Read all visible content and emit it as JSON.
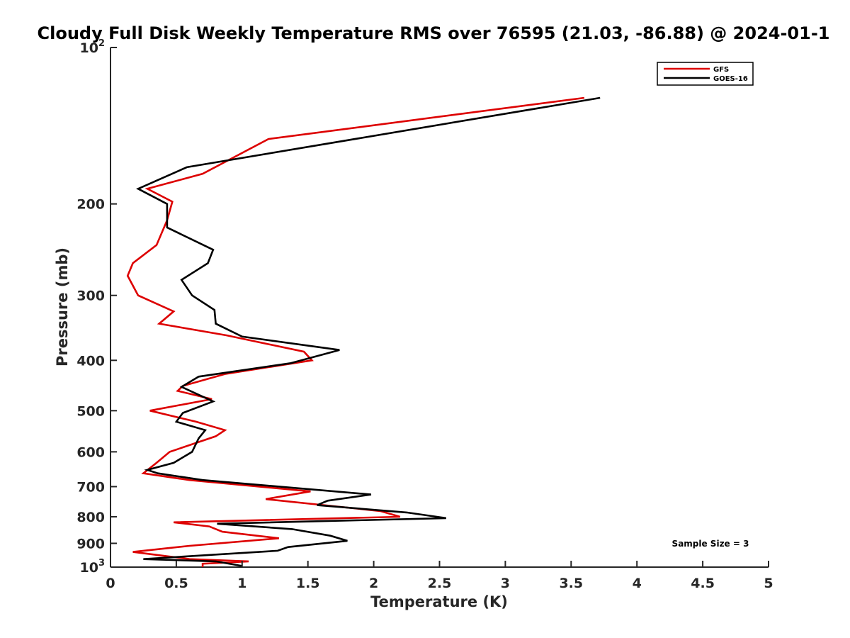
{
  "chart_data": {
    "type": "line",
    "title": "Cloudy Full Disk Weekly Temperature RMS over 76595 (21.03, -86.88) @ 2024-01-1",
    "xlabel": "Temperature (K)",
    "ylabel": "Pressure (mb)",
    "xlim": [
      0,
      5
    ],
    "ylim": [
      100,
      1000
    ],
    "y_scale": "log",
    "y_reversed": true,
    "grid": false,
    "legend_position": "top-right",
    "x_ticks": [
      "0",
      "0.5",
      "1",
      "1.5",
      "2",
      "2.5",
      "3",
      "3.5",
      "4",
      "4.5",
      "5"
    ],
    "y_ticks": [
      {
        "value": 100,
        "base": "10",
        "exp": "2"
      },
      {
        "value": 200,
        "label": "200"
      },
      {
        "value": 300,
        "label": "300"
      },
      {
        "value": 400,
        "label": "400"
      },
      {
        "value": 500,
        "label": "500"
      },
      {
        "value": 600,
        "label": "600"
      },
      {
        "value": 700,
        "label": "700"
      },
      {
        "value": 800,
        "label": "800"
      },
      {
        "value": 900,
        "label": "900"
      },
      {
        "value": 1000,
        "base": "10",
        "exp": "3"
      }
    ],
    "annotation": "Sample Size = 3",
    "series": [
      {
        "name": "GFS",
        "color": "#dd0000",
        "points": [
          [
            3.6,
            125
          ],
          [
            1.2,
            150
          ],
          [
            0.7,
            175
          ],
          [
            0.28,
            187
          ],
          [
            0.47,
            198
          ],
          [
            0.43,
            215
          ],
          [
            0.35,
            240
          ],
          [
            0.17,
            260
          ],
          [
            0.13,
            275
          ],
          [
            0.21,
            300
          ],
          [
            0.48,
            322
          ],
          [
            0.37,
            340
          ],
          [
            0.88,
            358
          ],
          [
            1.47,
            385
          ],
          [
            1.53,
            400
          ],
          [
            0.87,
            425
          ],
          [
            0.55,
            448
          ],
          [
            0.51,
            458
          ],
          [
            0.77,
            475
          ],
          [
            0.3,
            500
          ],
          [
            0.65,
            525
          ],
          [
            0.87,
            545
          ],
          [
            0.8,
            560
          ],
          [
            0.45,
            600
          ],
          [
            0.35,
            630
          ],
          [
            0.25,
            660
          ],
          [
            0.6,
            680
          ],
          [
            1.52,
            715
          ],
          [
            1.18,
            740
          ],
          [
            2.05,
            780
          ],
          [
            2.2,
            800
          ],
          [
            0.48,
            820
          ],
          [
            0.75,
            835
          ],
          [
            0.85,
            855
          ],
          [
            1.28,
            880
          ],
          [
            0.6,
            910
          ],
          [
            0.17,
            935
          ],
          [
            0.6,
            965
          ],
          [
            1.05,
            975
          ],
          [
            0.7,
            985
          ],
          [
            0.7,
            1000
          ]
        ]
      },
      {
        "name": "GOES-16",
        "color": "#000000",
        "points": [
          [
            3.72,
            125
          ],
          [
            0.58,
            170
          ],
          [
            0.21,
            187
          ],
          [
            0.43,
            200
          ],
          [
            0.43,
            222
          ],
          [
            0.78,
            245
          ],
          [
            0.74,
            260
          ],
          [
            0.54,
            280
          ],
          [
            0.62,
            300
          ],
          [
            0.79,
            320
          ],
          [
            0.8,
            340
          ],
          [
            1.0,
            360
          ],
          [
            1.74,
            382
          ],
          [
            1.37,
            405
          ],
          [
            0.67,
            430
          ],
          [
            0.54,
            450
          ],
          [
            0.78,
            480
          ],
          [
            0.55,
            505
          ],
          [
            0.5,
            525
          ],
          [
            0.72,
            545
          ],
          [
            0.67,
            565
          ],
          [
            0.62,
            600
          ],
          [
            0.48,
            630
          ],
          [
            0.28,
            650
          ],
          [
            0.36,
            660
          ],
          [
            0.7,
            680
          ],
          [
            1.98,
            725
          ],
          [
            1.65,
            745
          ],
          [
            1.57,
            760
          ],
          [
            2.25,
            785
          ],
          [
            2.55,
            805
          ],
          [
            0.81,
            825
          ],
          [
            1.38,
            845
          ],
          [
            1.67,
            870
          ],
          [
            1.8,
            890
          ],
          [
            1.35,
            915
          ],
          [
            1.27,
            930
          ],
          [
            0.25,
            965
          ],
          [
            0.8,
            975
          ],
          [
            1.0,
            995
          ]
        ]
      }
    ]
  }
}
